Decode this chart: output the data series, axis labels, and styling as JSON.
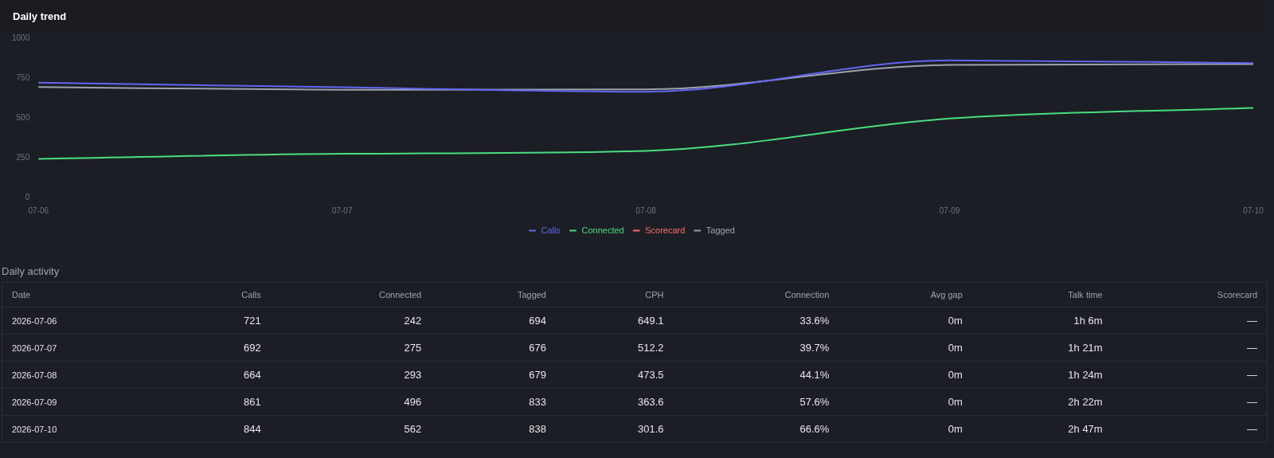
{
  "chart_data": [
    {
      "type": "line",
      "title": "Daily trend",
      "categories": [
        "07-06",
        "07-07",
        "07-08",
        "07-09",
        "07-10"
      ],
      "ylim": [
        0,
        1000
      ],
      "yticks": [
        0,
        250,
        500,
        750,
        1000
      ],
      "grid": false,
      "legend": "bottom",
      "marker": "none",
      "line_style": "solid",
      "series": [
        {
          "name": "Calls",
          "color": "#6366f1",
          "values": [
            721,
            692,
            664,
            861,
            844
          ]
        },
        {
          "name": "Connected",
          "color": "#4ade80",
          "values": [
            242,
            275,
            293,
            496,
            562
          ]
        },
        {
          "name": "Scorecard",
          "color": "#f87171",
          "values": [
            null,
            null,
            null,
            null,
            null
          ]
        },
        {
          "name": "Tagged",
          "color": "#9ca3af",
          "values": [
            694,
            676,
            679,
            833,
            838
          ]
        }
      ]
    },
    {
      "type": "other",
      "title": "Daily activity",
      "data_labels": true,
      "xlabel": "Date",
      "categories": [
        "2026-07-06",
        "2026-07-07",
        "2026-07-08",
        "2026-07-09",
        "2026-07-10"
      ],
      "series": [
        {
          "name": "Calls",
          "values": [
            721,
            692,
            664,
            861,
            844
          ]
        },
        {
          "name": "Connected",
          "values": [
            242,
            275,
            293,
            496,
            562
          ]
        },
        {
          "name": "Tagged",
          "values": [
            694,
            676,
            679,
            833,
            838
          ]
        },
        {
          "name": "CPH",
          "values": [
            649.1,
            512.2,
            473.5,
            363.6,
            301.6
          ]
        },
        {
          "name": "Connection",
          "values": [
            null,
            null,
            null,
            null,
            null
          ],
          "value_labels": [
            "33.6%",
            "39.7%",
            "44.1%",
            "57.6%",
            "66.6%"
          ]
        },
        {
          "name": "Avg gap",
          "values": [
            null,
            null,
            null,
            null,
            null
          ],
          "value_labels": [
            "0m",
            "0m",
            "0m",
            "0m",
            "0m"
          ]
        },
        {
          "name": "Talk time",
          "values": [
            null,
            null,
            null,
            null,
            null
          ],
          "value_labels": [
            "1h 6m",
            "1h 21m",
            "1h 24m",
            "2h 22m",
            "2h 47m"
          ]
        },
        {
          "name": "Scorecard",
          "values": [
            null,
            null,
            null,
            null,
            null
          ],
          "value_labels": [
            "—",
            "—",
            "—",
            "—",
            "—"
          ]
        }
      ]
    }
  ]
}
